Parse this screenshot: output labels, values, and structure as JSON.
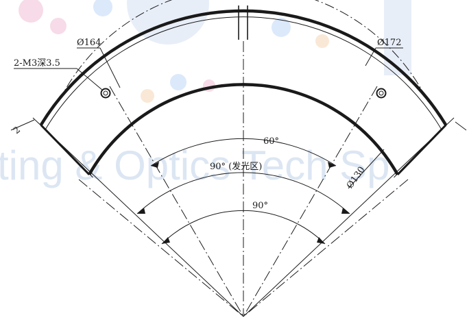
{
  "drawing": {
    "label_bore": "Ø164",
    "label_outer": "Ø172",
    "label_holes": "2-M3深3.5",
    "label_inner": "Ø130",
    "label_angle_60": "60°",
    "label_angle_90_light": "90° (发光区)",
    "label_angle_90": "90°",
    "label_thickness": "2"
  },
  "watermark": {
    "text": "ting & Optics Tech Sp"
  },
  "colors": {
    "line": "#1a1a1a",
    "watermark_text": "#dce6f3",
    "watermark_dots": [
      "#f7dbe8",
      "#dbe9fb",
      "#fae8d6"
    ]
  }
}
